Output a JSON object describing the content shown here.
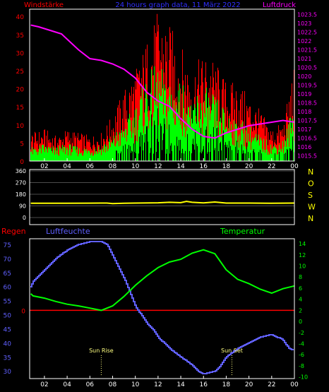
{
  "header": {
    "left_label": "Windstärke",
    "center_label": "24 hours graph data, 11 März 2022",
    "right_label": "Luftdruck"
  },
  "bottom_labels": {
    "left": "Regen",
    "middle": "Luftfeuchte",
    "right": "Temperatur"
  },
  "colors": {
    "wind_gust": "#ff0000",
    "wind_avg": "#00ff00",
    "wind_calm": "#000000",
    "pressure": "#ff00ff",
    "direction": "#ffff00",
    "humidity": "#6060ff",
    "temperature": "#00ff00",
    "rain": "#ff0000",
    "frame": "#ffffff",
    "sun_marks": "#ffff80",
    "axis_blue": "#6060ff",
    "axis_green": "#00ff00",
    "header_red": "#ff0000",
    "header_blue": "#3030ff",
    "header_pink": "#ff00ff"
  },
  "chart_data": [
    {
      "type": "bar",
      "name": "wind",
      "x_tick_labels": [
        "02",
        "04",
        "06",
        "08",
        "10",
        "12",
        "14",
        "16",
        "18",
        "20",
        "22",
        "00"
      ],
      "x_range_hours": [
        0.7,
        24.0
      ],
      "y_left_ticks": [
        0,
        5,
        10,
        15,
        20,
        25,
        30,
        35,
        40
      ],
      "y_left_range": [
        0,
        42
      ],
      "y_right_ticks": [
        "1015.5",
        "1016",
        "1016.5",
        "1017",
        "1017.5",
        "1018",
        "1018.5",
        "1019",
        "1019.5",
        "1020",
        "1020.5",
        "1021",
        "1021.5",
        "1022",
        "1022.5",
        "1023",
        "1023.5"
      ],
      "y_right_range": [
        1015.2,
        1023.8
      ],
      "wind_series_hours": [
        1,
        2,
        3,
        4,
        5,
        6,
        7,
        8,
        9,
        10,
        11,
        12,
        13,
        14,
        15,
        16,
        17,
        18,
        19,
        20,
        21,
        22,
        23,
        24
      ],
      "gust_max": [
        8,
        9,
        7,
        9,
        8,
        7,
        8,
        13,
        20,
        26,
        34,
        42,
        38,
        32,
        26,
        30,
        28,
        22,
        22,
        18,
        14,
        9,
        11,
        27
      ],
      "avg_max": [
        4,
        5,
        4,
        5,
        4,
        4,
        5,
        7,
        12,
        16,
        25,
        27,
        24,
        23,
        20,
        21,
        18,
        15,
        12,
        10,
        7,
        5,
        6,
        18
      ],
      "pressure_hours": [
        0.8,
        1.5,
        2,
        2.5,
        3,
        3.5,
        4,
        5,
        6,
        7,
        8,
        9,
        10,
        11,
        12,
        13,
        14,
        15,
        16,
        17,
        18,
        19,
        20,
        21,
        22,
        23,
        24
      ],
      "pressure_hpa": [
        1022.9,
        1022.8,
        1022.7,
        1022.6,
        1022.5,
        1022.4,
        1022.1,
        1021.5,
        1021.0,
        1020.9,
        1020.7,
        1020.4,
        1019.9,
        1019.1,
        1018.6,
        1018.3,
        1017.6,
        1017.0,
        1016.6,
        1016.5,
        1016.8,
        1017.0,
        1017.2,
        1017.3,
        1017.4,
        1017.5,
        1017.4
      ]
    },
    {
      "type": "line",
      "name": "wind_direction",
      "y_ticks": [
        0,
        90,
        180,
        270,
        360
      ],
      "y_range": [
        0,
        360
      ],
      "direction_labels": [
        "N",
        "W",
        "S",
        "O",
        "N"
      ],
      "hours": [
        0.8,
        4,
        7,
        7.5,
        8,
        9,
        10,
        12,
        13,
        14,
        14.5,
        15,
        16,
        17,
        18,
        20,
        22,
        24
      ],
      "degrees": [
        110,
        110,
        112,
        112,
        108,
        110,
        112,
        114,
        118,
        115,
        125,
        118,
        113,
        120,
        112,
        112,
        110,
        112
      ]
    },
    {
      "type": "line",
      "name": "weather",
      "humidity_ticks": [
        30,
        35,
        40,
        45,
        50,
        55,
        60,
        65,
        70,
        75
      ],
      "humidity_range": [
        27.3,
        77
      ],
      "temperature_ticks": [
        -10,
        -8,
        -6,
        -4,
        -2,
        0,
        2,
        4,
        6,
        8,
        10,
        12,
        14
      ],
      "temperature_range": [
        -10.3,
        14.9
      ],
      "rain_axis_tick": "0",
      "rain_value": 0,
      "humidity_hours": [
        0.8,
        1,
        2,
        3,
        4,
        5,
        6,
        7,
        7.5,
        8,
        9,
        9.5,
        10,
        10.5,
        11,
        11.5,
        12,
        13,
        14,
        15,
        15.5,
        16,
        16.5,
        17,
        17.5,
        18,
        19,
        20,
        21,
        22,
        23,
        23.5,
        24
      ],
      "humidity_pct": [
        60,
        62,
        66,
        70,
        73,
        75,
        76,
        76,
        75,
        71,
        63,
        58,
        53,
        50,
        47,
        45,
        42,
        38,
        35,
        32,
        30,
        29,
        29.5,
        30,
        32,
        35,
        38,
        40,
        42,
        43,
        41,
        38,
        37
      ],
      "temperature_hours": [
        0.8,
        1,
        2,
        3,
        4,
        5,
        6,
        7,
        8,
        9,
        10,
        11,
        12,
        13,
        14,
        15,
        16,
        17,
        18,
        19,
        20,
        21,
        22,
        23,
        24
      ],
      "temperature_c": [
        5,
        4.6,
        4.2,
        3.6,
        3.1,
        2.8,
        2.4,
        2,
        2.8,
        4.5,
        6.5,
        8.2,
        9.7,
        10.7,
        11.2,
        12.3,
        12.9,
        12.2,
        9.3,
        7.6,
        6.8,
        5.8,
        5.1,
        5.9,
        6.4
      ],
      "sun_markers": [
        {
          "label": "Sun Rise",
          "hour": 7.0
        },
        {
          "label": "Sun Set",
          "hour": 18.5
        }
      ]
    }
  ]
}
